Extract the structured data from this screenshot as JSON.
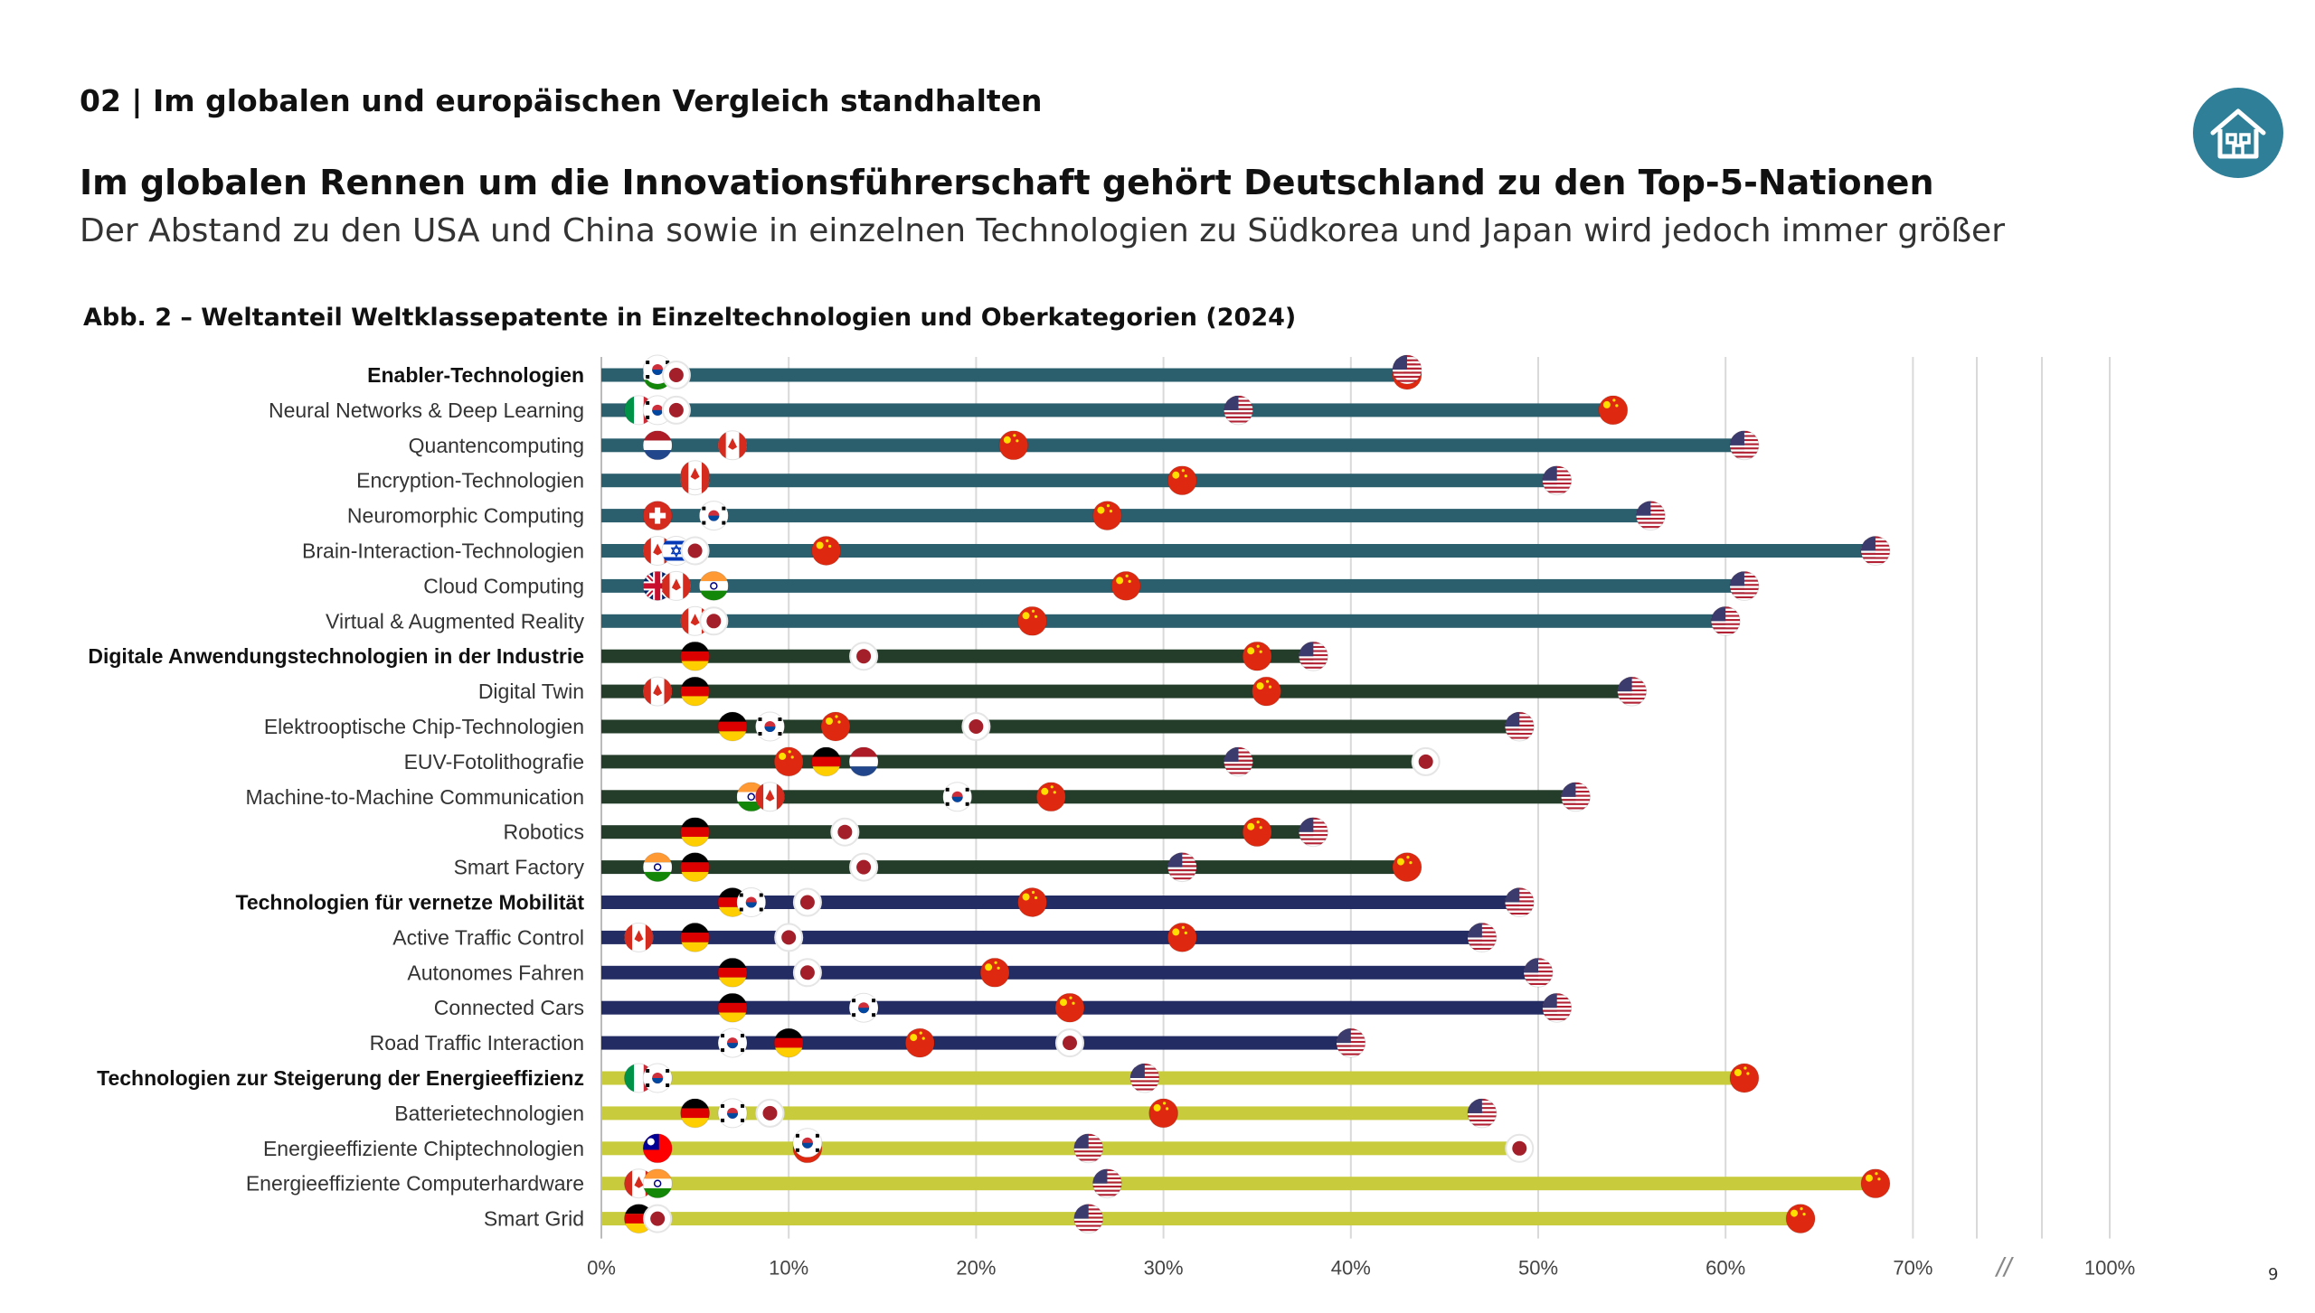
{
  "header": {
    "section": "02 | Im globalen und europäischen Vergleich standhalten",
    "title": "Im globalen Rennen um die Innovationsführerschaft gehört Deutschland zu den Top-5-Nationen",
    "subtitle": "Der Abstand zu den USA und China sowie in einzelnen Technologien zu Südkorea und Japan wird jedoch immer größer"
  },
  "page_number": "9",
  "icons": {
    "home": "home-icon"
  },
  "colors": {
    "enabler": "#2b5f6e",
    "digital": "#243d2a",
    "mobility": "#232c63",
    "energy": "#c8cc3c",
    "home_button": "#2f7f99",
    "flag_red": "#a3202a"
  },
  "chart_data": {
    "type": "bar",
    "title": "Abb. 2 – Weltanteil Weltklassepatente in Einzeltechnologien und Oberkategorien (2024)",
    "x_ticks": [
      "0%",
      "10%",
      "20%",
      "30%",
      "40%",
      "50%",
      "60%",
      "70%",
      "100%"
    ],
    "axis_break": "//",
    "xlim": [
      0,
      100
    ],
    "grid": true,
    "groups": [
      {
        "name": "Enabler-Technologien",
        "color_key": "enabler"
      },
      {
        "name": "Digitale Anwendungstechnologien in der Industrie",
        "color_key": "digital"
      },
      {
        "name": "Technologien für vernetze Mobilität",
        "color_key": "mobility"
      },
      {
        "name": "Technologien zur Steigerung der Energieeffizienz",
        "color_key": "energy"
      }
    ],
    "rows": [
      {
        "label": "Enabler-Technologien",
        "header": true,
        "group": 0,
        "value": 43,
        "markers": [
          {
            "x": 3,
            "f": "in"
          },
          {
            "x": 3,
            "f": "kr"
          },
          {
            "x": 4,
            "f": "dot"
          },
          {
            "x": 43,
            "f": "cn"
          },
          {
            "x": 43,
            "f": "us"
          }
        ]
      },
      {
        "label": "Neural Networks & Deep Learning",
        "group": 0,
        "value": 54,
        "markers": [
          {
            "x": 2,
            "f": "it"
          },
          {
            "x": 3,
            "f": "kr"
          },
          {
            "x": 4,
            "f": "dot"
          },
          {
            "x": 34,
            "f": "us"
          },
          {
            "x": 54,
            "f": "cn"
          }
        ]
      },
      {
        "label": "Quantencomputing",
        "group": 0,
        "value": 61,
        "markers": [
          {
            "x": 3,
            "f": "nl"
          },
          {
            "x": 7,
            "f": "ca"
          },
          {
            "x": 22,
            "f": "cn"
          },
          {
            "x": 61,
            "f": "us"
          }
        ]
      },
      {
        "label": "Encryption-Technologien",
        "group": 0,
        "value": 51,
        "markers": [
          {
            "x": 5,
            "f": "ca"
          },
          {
            "x": 5,
            "f": "ca"
          },
          {
            "x": 31,
            "f": "cn"
          },
          {
            "x": 51,
            "f": "us"
          }
        ]
      },
      {
        "label": "Neuromorphic Computing",
        "group": 0,
        "value": 56,
        "markers": [
          {
            "x": 3,
            "f": "ch"
          },
          {
            "x": 6,
            "f": "kr"
          },
          {
            "x": 27,
            "f": "cn"
          },
          {
            "x": 56,
            "f": "us"
          }
        ]
      },
      {
        "label": "Brain-Interaction-Technologien",
        "group": 0,
        "value": 68,
        "markers": [
          {
            "x": 3,
            "f": "ca"
          },
          {
            "x": 4,
            "f": "il"
          },
          {
            "x": 5,
            "f": "dot"
          },
          {
            "x": 12,
            "f": "cn"
          },
          {
            "x": 68,
            "f": "us"
          }
        ]
      },
      {
        "label": "Cloud Computing",
        "group": 0,
        "value": 61,
        "markers": [
          {
            "x": 3,
            "f": "gb"
          },
          {
            "x": 4,
            "f": "ca"
          },
          {
            "x": 6,
            "f": "in"
          },
          {
            "x": 28,
            "f": "cn"
          },
          {
            "x": 61,
            "f": "us"
          }
        ]
      },
      {
        "label": "Virtual & Augmented Reality",
        "group": 0,
        "value": 60,
        "markers": [
          {
            "x": 5,
            "f": "ca"
          },
          {
            "x": 6,
            "f": "dot"
          },
          {
            "x": 23,
            "f": "cn"
          },
          {
            "x": 60,
            "f": "us"
          }
        ]
      },
      {
        "label": "Digitale Anwendungstechnologien in der Industrie",
        "header": true,
        "group": 1,
        "value": 38,
        "markers": [
          {
            "x": 5,
            "f": "de"
          },
          {
            "x": 14,
            "f": "dot"
          },
          {
            "x": 35,
            "f": "cn"
          },
          {
            "x": 38,
            "f": "us"
          }
        ]
      },
      {
        "label": "Digital Twin",
        "group": 1,
        "value": 55,
        "markers": [
          {
            "x": 3,
            "f": "ca"
          },
          {
            "x": 5,
            "f": "de"
          },
          {
            "x": 35.5,
            "f": "cn"
          },
          {
            "x": 55,
            "f": "us"
          }
        ]
      },
      {
        "label": "Elektrooptische Chip-Technologien",
        "group": 1,
        "value": 49,
        "markers": [
          {
            "x": 7,
            "f": "de"
          },
          {
            "x": 9,
            "f": "kr"
          },
          {
            "x": 12.5,
            "f": "cn"
          },
          {
            "x": 20,
            "f": "dot"
          },
          {
            "x": 49,
            "f": "us"
          }
        ]
      },
      {
        "label": "EUV-Fotolithografie",
        "group": 1,
        "value": 44,
        "markers": [
          {
            "x": 10,
            "f": "cn"
          },
          {
            "x": 12,
            "f": "de"
          },
          {
            "x": 14,
            "f": "nl"
          },
          {
            "x": 34,
            "f": "us"
          },
          {
            "x": 44,
            "f": "dot"
          }
        ]
      },
      {
        "label": "Machine-to-Machine Communication",
        "group": 1,
        "value": 52,
        "markers": [
          {
            "x": 8,
            "f": "in"
          },
          {
            "x": 9,
            "f": "ca"
          },
          {
            "x": 19,
            "f": "kr"
          },
          {
            "x": 24,
            "f": "cn"
          },
          {
            "x": 52,
            "f": "us"
          }
        ]
      },
      {
        "label": "Robotics",
        "group": 1,
        "value": 38,
        "markers": [
          {
            "x": 5,
            "f": "de"
          },
          {
            "x": 13,
            "f": "dot"
          },
          {
            "x": 35,
            "f": "cn"
          },
          {
            "x": 38,
            "f": "us"
          }
        ]
      },
      {
        "label": "Smart Factory",
        "group": 1,
        "value": 43,
        "markers": [
          {
            "x": 3,
            "f": "in"
          },
          {
            "x": 5,
            "f": "de"
          },
          {
            "x": 14,
            "f": "dot"
          },
          {
            "x": 31,
            "f": "us"
          },
          {
            "x": 43,
            "f": "cn"
          }
        ]
      },
      {
        "label": "Technologien für vernetze Mobilität",
        "header": true,
        "group": 2,
        "value": 49,
        "markers": [
          {
            "x": 7,
            "f": "de"
          },
          {
            "x": 8,
            "f": "kr"
          },
          {
            "x": 11,
            "f": "dot"
          },
          {
            "x": 23,
            "f": "cn"
          },
          {
            "x": 49,
            "f": "us"
          }
        ]
      },
      {
        "label": "Active Traffic Control",
        "group": 2,
        "value": 47,
        "markers": [
          {
            "x": 2,
            "f": "ca"
          },
          {
            "x": 5,
            "f": "de"
          },
          {
            "x": 10,
            "f": "dot"
          },
          {
            "x": 31,
            "f": "cn"
          },
          {
            "x": 47,
            "f": "us"
          }
        ]
      },
      {
        "label": "Autonomes Fahren",
        "group": 2,
        "value": 50,
        "markers": [
          {
            "x": 7,
            "f": "de"
          },
          {
            "x": 11,
            "f": "dot"
          },
          {
            "x": 21,
            "f": "cn"
          },
          {
            "x": 50,
            "f": "us"
          }
        ]
      },
      {
        "label": "Connected Cars",
        "group": 2,
        "value": 51,
        "markers": [
          {
            "x": 7,
            "f": "de"
          },
          {
            "x": 14,
            "f": "kr"
          },
          {
            "x": 25,
            "f": "cn"
          },
          {
            "x": 51,
            "f": "us"
          }
        ]
      },
      {
        "label": "Road Traffic Interaction",
        "group": 2,
        "value": 40,
        "markers": [
          {
            "x": 7,
            "f": "kr"
          },
          {
            "x": 10,
            "f": "de"
          },
          {
            "x": 17,
            "f": "cn"
          },
          {
            "x": 25,
            "f": "dot"
          },
          {
            "x": 40,
            "f": "us"
          }
        ]
      },
      {
        "label": "Technologien zur Steigerung der Energieeffizienz",
        "header": true,
        "group": 3,
        "value": 61,
        "markers": [
          {
            "x": 2,
            "f": "it"
          },
          {
            "x": 3,
            "f": "kr"
          },
          {
            "x": 29,
            "f": "us"
          },
          {
            "x": 61,
            "f": "cn"
          }
        ]
      },
      {
        "label": "Batterietechnologien",
        "group": 3,
        "value": 47,
        "markers": [
          {
            "x": 5,
            "f": "de"
          },
          {
            "x": 7,
            "f": "kr"
          },
          {
            "x": 9,
            "f": "dot"
          },
          {
            "x": 30,
            "f": "cn"
          },
          {
            "x": 47,
            "f": "us"
          }
        ]
      },
      {
        "label": "Energieeffiziente Chiptechnologien",
        "group": 3,
        "value": 49,
        "markers": [
          {
            "x": 3,
            "f": "tw"
          },
          {
            "x": 11,
            "f": "cn"
          },
          {
            "x": 11,
            "f": "kr"
          },
          {
            "x": 26,
            "f": "us"
          },
          {
            "x": 49,
            "f": "dot"
          }
        ]
      },
      {
        "label": "Energieeffiziente Computerhardware",
        "group": 3,
        "value": 68,
        "markers": [
          {
            "x": 2,
            "f": "ca"
          },
          {
            "x": 3,
            "f": "in"
          },
          {
            "x": 27,
            "f": "us"
          },
          {
            "x": 68,
            "f": "cn"
          }
        ]
      },
      {
        "label": "Smart Grid",
        "group": 3,
        "value": 64,
        "markers": [
          {
            "x": 2,
            "f": "de"
          },
          {
            "x": 3,
            "f": "dot"
          },
          {
            "x": 26,
            "f": "us"
          },
          {
            "x": 64,
            "f": "cn"
          }
        ]
      }
    ]
  }
}
